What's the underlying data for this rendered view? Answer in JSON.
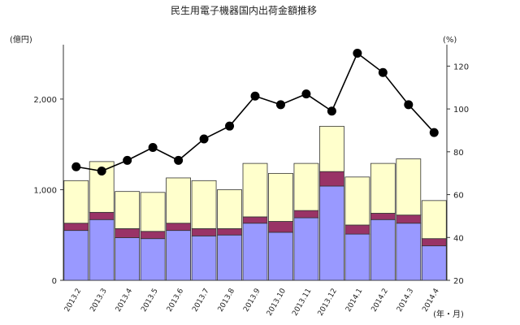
{
  "chart_data": {
    "type": "bar",
    "title": "民生用電子機器国内出荷金額推移",
    "left_unit": "(億円)",
    "right_unit": "(%)",
    "x_unit": "(年・月)",
    "categories": [
      "2013.2",
      "2013.3",
      "2013.4",
      "2013.5",
      "2013.6",
      "2013.7",
      "2013.8",
      "2013.9",
      "2013.10",
      "2013.11",
      "2013.12",
      "2014.1",
      "2014.2",
      "2014.3",
      "2014.4"
    ],
    "y_left_range": [
      0,
      2600
    ],
    "y_left_ticks": [
      0,
      1000,
      2000
    ],
    "y_left_tick_labels": [
      "0",
      "1,000",
      "2,000"
    ],
    "y_right_range": [
      20,
      130
    ],
    "y_right_ticks": [
      20,
      40,
      60,
      80,
      100,
      120
    ],
    "y_right_tick_labels": [
      "20",
      "40",
      "60",
      "80",
      "100",
      "120"
    ],
    "stacked_series": [
      {
        "color": "#9999ff",
        "values": [
          550,
          670,
          470,
          460,
          550,
          490,
          500,
          630,
          530,
          690,
          1040,
          510,
          670,
          630,
          380
        ]
      },
      {
        "color": "#993366",
        "values": [
          80,
          80,
          100,
          80,
          80,
          80,
          70,
          70,
          120,
          80,
          160,
          100,
          70,
          90,
          80
        ]
      },
      {
        "color": "#ffffcc",
        "values": [
          470,
          560,
          410,
          430,
          500,
          530,
          430,
          590,
          530,
          520,
          500,
          530,
          550,
          620,
          420
        ]
      }
    ],
    "line_series": {
      "axis": "right",
      "color": "#000000",
      "values": [
        73,
        71,
        76,
        82,
        76,
        86,
        92,
        106,
        102,
        107,
        99,
        126,
        117,
        102,
        89
      ]
    }
  }
}
